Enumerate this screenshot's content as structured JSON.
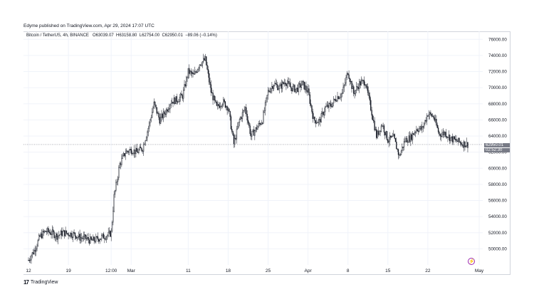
{
  "header": {
    "published_line": "Edyme published on TradingView.com, Apr 29, 2024 17:07 UTC"
  },
  "legend": {
    "symbol": "Bitcoin / TetherUS, 4h, BINANCE",
    "open_label": "O",
    "open": "63039.07",
    "high_label": "H",
    "high": "63158.80",
    "low_label": "L",
    "low": "62754.00",
    "close_label": "C",
    "close": "62950.01",
    "change": "−89.06 (−0.14%)"
  },
  "price_tags": {
    "last_price": "62950.01",
    "countdown": "02:52:30"
  },
  "footer": {
    "brand": "TradingView",
    "brand_mark": "17"
  },
  "colors": {
    "up_body": "#ffffff",
    "down_body": "#131722",
    "wick": "#131722",
    "grid": "#f0f3fa",
    "price_line": "#787b86",
    "accent": "#9c27b0"
  },
  "icons": {
    "replay": "lightning-icon"
  },
  "chart_data": {
    "type": "candlestick",
    "title": "Bitcoin / TetherUS, 4h, BINANCE",
    "xlabel": "",
    "ylabel": "",
    "ylim": [
      48000,
      77000
    ],
    "y_ticks": [
      "76000.00",
      "74000.00",
      "72000.00",
      "70000.00",
      "68000.00",
      "66000.00",
      "64000.00",
      "62000.00",
      "60000.00",
      "58000.00",
      "56000.00",
      "54000.00",
      "52000.00",
      "50000.00"
    ],
    "x_ticks": [
      {
        "label": "12",
        "date": "2024-02-12"
      },
      {
        "label": "19",
        "date": "2024-02-19"
      },
      {
        "label": "12:00",
        "date": "2024-02-26T12:00"
      },
      {
        "label": "Mar",
        "date": "2024-03-01"
      },
      {
        "label": "11",
        "date": "2024-03-11"
      },
      {
        "label": "18",
        "date": "2024-03-18"
      },
      {
        "label": "25",
        "date": "2024-03-25"
      },
      {
        "label": "Apr",
        "date": "2024-04-01"
      },
      {
        "label": "8",
        "date": "2024-04-08"
      },
      {
        "label": "15",
        "date": "2024-04-15"
      },
      {
        "label": "22",
        "date": "2024-04-22"
      },
      {
        "label": "May",
        "date": "2024-05-01"
      }
    ],
    "x_range": [
      "2024-02-12",
      "2024-05-01"
    ],
    "grid": true,
    "last_price": 62950.01,
    "close_path": [
      [
        "2024-02-12",
        48600
      ],
      [
        "2024-02-13",
        49800
      ],
      [
        "2024-02-14",
        51500
      ],
      [
        "2024-02-15",
        52200
      ],
      [
        "2024-02-16",
        52000
      ],
      [
        "2024-02-17",
        51600
      ],
      [
        "2024-02-18",
        52000
      ],
      [
        "2024-02-19",
        51900
      ],
      [
        "2024-02-20",
        51800
      ],
      [
        "2024-02-21",
        51400
      ],
      [
        "2024-02-22",
        51300
      ],
      [
        "2024-02-23",
        51000
      ],
      [
        "2024-02-24",
        51200
      ],
      [
        "2024-02-25",
        51500
      ],
      [
        "2024-02-26",
        51700
      ],
      [
        "2024-02-26T12:00",
        52000
      ],
      [
        "2024-02-27",
        56500
      ],
      [
        "2024-02-28",
        60500
      ],
      [
        "2024-02-29",
        62000
      ],
      [
        "2024-03-01",
        62300
      ],
      [
        "2024-03-02",
        62000
      ],
      [
        "2024-03-03",
        62500
      ],
      [
        "2024-03-04",
        65000
      ],
      [
        "2024-03-05",
        68000
      ],
      [
        "2024-03-06",
        66000
      ],
      [
        "2024-03-07",
        67000
      ],
      [
        "2024-03-08",
        68300
      ],
      [
        "2024-03-09",
        68500
      ],
      [
        "2024-03-10",
        69000
      ],
      [
        "2024-03-11",
        72000
      ],
      [
        "2024-03-12",
        71500
      ],
      [
        "2024-03-13",
        73000
      ],
      [
        "2024-03-14",
        73500
      ],
      [
        "2024-03-15",
        69500
      ],
      [
        "2024-03-16",
        67500
      ],
      [
        "2024-03-17",
        68300
      ],
      [
        "2024-03-18",
        67500
      ],
      [
        "2024-03-19",
        63000
      ],
      [
        "2024-03-20",
        66000
      ],
      [
        "2024-03-21",
        67500
      ],
      [
        "2024-03-22",
        64000
      ],
      [
        "2024-03-23",
        65000
      ],
      [
        "2024-03-24",
        66000
      ],
      [
        "2024-03-25",
        69500
      ],
      [
        "2024-03-26",
        70500
      ],
      [
        "2024-03-27",
        70000
      ],
      [
        "2024-03-28",
        70800
      ],
      [
        "2024-03-29",
        70000
      ],
      [
        "2024-03-30",
        69800
      ],
      [
        "2024-03-31",
        70500
      ],
      [
        "2024-04-01",
        69500
      ],
      [
        "2024-04-02",
        66000
      ],
      [
        "2024-04-03",
        65800
      ],
      [
        "2024-04-04",
        67500
      ],
      [
        "2024-04-05",
        67800
      ],
      [
        "2024-04-06",
        68800
      ],
      [
        "2024-04-07",
        69300
      ],
      [
        "2024-04-08",
        72000
      ],
      [
        "2024-04-09",
        69300
      ],
      [
        "2024-04-10",
        70500
      ],
      [
        "2024-04-11",
        70800
      ],
      [
        "2024-04-12",
        67500
      ],
      [
        "2024-04-13",
        64000
      ],
      [
        "2024-04-14",
        65500
      ],
      [
        "2024-04-15",
        63500
      ],
      [
        "2024-04-16",
        63800
      ],
      [
        "2024-04-17",
        61500
      ],
      [
        "2024-04-18",
        63500
      ],
      [
        "2024-04-19",
        63800
      ],
      [
        "2024-04-20",
        64900
      ],
      [
        "2024-04-21",
        64900
      ],
      [
        "2024-04-22",
        66800
      ],
      [
        "2024-04-23",
        66400
      ],
      [
        "2024-04-24",
        64200
      ],
      [
        "2024-04-25",
        64400
      ],
      [
        "2024-04-26",
        63700
      ],
      [
        "2024-04-27",
        63400
      ],
      [
        "2024-04-28",
        63100
      ],
      [
        "2024-04-29",
        62950
      ]
    ]
  }
}
